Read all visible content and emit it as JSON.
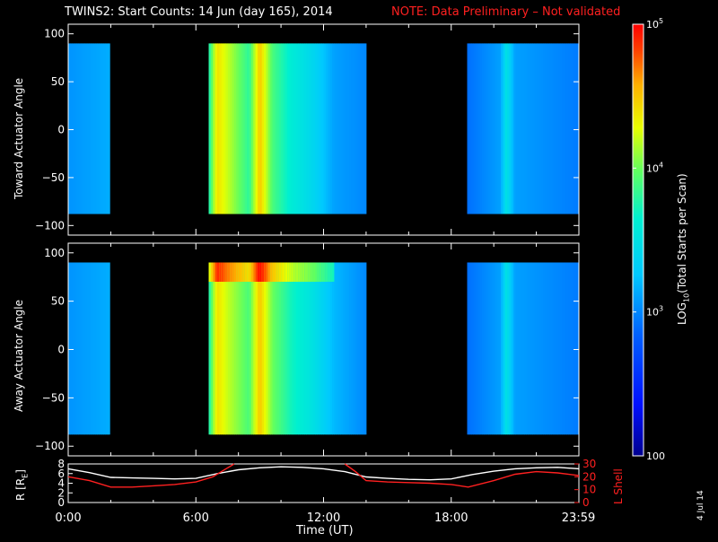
{
  "title": "TWINS2: Start Counts: 14 Jun (day 165), 2014",
  "note": "NOTE: Data Preliminary – Not validated",
  "stamp": "4 Jul 14",
  "colors": {
    "note": "#ff2020",
    "lshell": "#ff2020",
    "radius": "#ffffff",
    "gap": "#000000"
  },
  "colorbar": {
    "label_html": "LOG<sub>10</sub>(Total Starts per Scan)",
    "label_parts": [
      "LOG",
      "10",
      "(Total Starts per Scan)"
    ],
    "ticks": [
      {
        "base": "10",
        "exp": "5",
        "value": 100000
      },
      {
        "base": "10",
        "exp": "4",
        "value": 10000
      },
      {
        "base": "10",
        "exp": "3",
        "value": 1000
      },
      {
        "base": "100",
        "exp": "",
        "value": 100
      }
    ],
    "range": [
      100,
      100000
    ],
    "scale": "log",
    "colormap": "rainbow (blue→cyan→green→yellow→red)"
  },
  "chart_data": [
    {
      "type": "heatmap",
      "name": "toward",
      "ylabel": "Toward Actuator Angle",
      "ylim": [
        -110,
        110
      ],
      "yticks": [
        "100",
        "50",
        "0",
        "−50",
        "−100"
      ],
      "ytick_values": [
        100,
        50,
        0,
        -50,
        -100
      ],
      "xlim_hours": [
        0,
        24
      ],
      "angle_coverage": [
        -88,
        90
      ],
      "data_intervals_hours": [
        [
          0.0,
          1.95
        ],
        [
          6.6,
          14.0
        ],
        [
          18.75,
          24.0
        ]
      ],
      "profile": [
        {
          "t": 0.0,
          "log": 3.05
        },
        {
          "t": 1.9,
          "log": 3.15
        },
        {
          "t": 6.6,
          "log": 3.7
        },
        {
          "t": 7.0,
          "log": 4.4
        },
        {
          "t": 7.5,
          "log": 4.2
        },
        {
          "t": 8.5,
          "log": 3.8
        },
        {
          "t": 9.0,
          "log": 4.5
        },
        {
          "t": 9.6,
          "log": 3.9
        },
        {
          "t": 10.5,
          "log": 3.6
        },
        {
          "t": 11.5,
          "log": 3.4
        },
        {
          "t": 12.5,
          "log": 3.1
        },
        {
          "t": 14.0,
          "log": 3.0
        },
        {
          "t": 18.75,
          "log": 2.9
        },
        {
          "t": 20.3,
          "log": 3.1
        },
        {
          "t": 20.6,
          "log": 3.5
        },
        {
          "t": 21.0,
          "log": 3.1
        },
        {
          "t": 24.0,
          "log": 2.95
        }
      ]
    },
    {
      "type": "heatmap",
      "name": "away",
      "ylabel": "Away Actuator Angle",
      "ylim": [
        -110,
        110
      ],
      "yticks": [
        "100",
        "50",
        "0",
        "−50",
        "−100"
      ],
      "ytick_values": [
        100,
        50,
        0,
        -50,
        -100
      ],
      "xlim_hours": [
        0,
        24
      ],
      "angle_coverage": [
        -88,
        90
      ],
      "data_intervals_hours": [
        [
          0.0,
          1.95
        ],
        [
          6.6,
          14.0
        ],
        [
          18.75,
          24.0
        ]
      ],
      "profile": [
        {
          "t": 0.0,
          "log": 3.05
        },
        {
          "t": 1.9,
          "log": 3.15
        },
        {
          "t": 6.6,
          "log": 3.7
        },
        {
          "t": 7.0,
          "log": 4.4
        },
        {
          "t": 7.5,
          "log": 4.2
        },
        {
          "t": 8.5,
          "log": 3.9
        },
        {
          "t": 9.0,
          "log": 4.5
        },
        {
          "t": 9.6,
          "log": 4.0
        },
        {
          "t": 10.5,
          "log": 3.7
        },
        {
          "t": 11.5,
          "log": 3.5
        },
        {
          "t": 12.5,
          "log": 3.2
        },
        {
          "t": 14.0,
          "log": 3.0
        },
        {
          "t": 18.75,
          "log": 2.9
        },
        {
          "t": 20.3,
          "log": 3.1
        },
        {
          "t": 20.6,
          "log": 3.5
        },
        {
          "t": 21.0,
          "log": 3.1
        },
        {
          "t": 24.0,
          "log": 2.95
        }
      ],
      "hot_band_angle": [
        70,
        90
      ]
    },
    {
      "type": "line",
      "name": "ephemeris",
      "xlabel": "Time (UT)",
      "xticks": [
        "0:00",
        "6:00",
        "12:00",
        "18:00",
        "23:59"
      ],
      "xtick_hours": [
        0,
        6,
        12,
        18,
        23.98
      ],
      "ylabel_left": "R [Rₑ]",
      "ylabel_left_parts": [
        "R [R",
        "E",
        "]"
      ],
      "ylabel_right": "L Shell",
      "ylim_left": [
        0,
        8
      ],
      "ylim_right": [
        0,
        30
      ],
      "yticks_left": [
        "8",
        "6",
        "4",
        "2",
        "0"
      ],
      "yticks_left_values": [
        8,
        6,
        4,
        2,
        0
      ],
      "yticks_right": [
        "30",
        "20",
        "10",
        "0"
      ],
      "yticks_right_values": [
        30,
        20,
        10,
        0
      ],
      "series": [
        {
          "axis": "left",
          "color": "white",
          "x": [
            0,
            1,
            2,
            3,
            4,
            5,
            6,
            7,
            8,
            9,
            10,
            11,
            12,
            13,
            14,
            15,
            16,
            17,
            18,
            19,
            20,
            21,
            22,
            23,
            24
          ],
          "y": [
            7.0,
            6.2,
            5.2,
            5.1,
            5.0,
            4.9,
            5.0,
            6.0,
            6.8,
            7.2,
            7.4,
            7.3,
            7.0,
            6.4,
            5.3,
            5.0,
            4.8,
            4.7,
            4.9,
            5.8,
            6.5,
            7.0,
            7.2,
            7.3,
            7.0
          ]
        },
        {
          "axis": "right",
          "color": "red",
          "x": [
            0,
            1,
            2,
            3,
            4,
            5,
            6,
            6.8,
            7.4,
            7.8
          ],
          "y": [
            20,
            17,
            12,
            12,
            13,
            14,
            16,
            20,
            26,
            30
          ]
        },
        {
          "axis": "right",
          "color": "red",
          "x": [
            13.0,
            13.5,
            14.0,
            15,
            16,
            17,
            18,
            18.8,
            20,
            21,
            22,
            23,
            24
          ],
          "y": [
            30,
            24,
            17,
            16,
            15.5,
            15,
            14,
            12,
            17,
            22,
            24,
            23,
            21
          ]
        }
      ]
    }
  ]
}
